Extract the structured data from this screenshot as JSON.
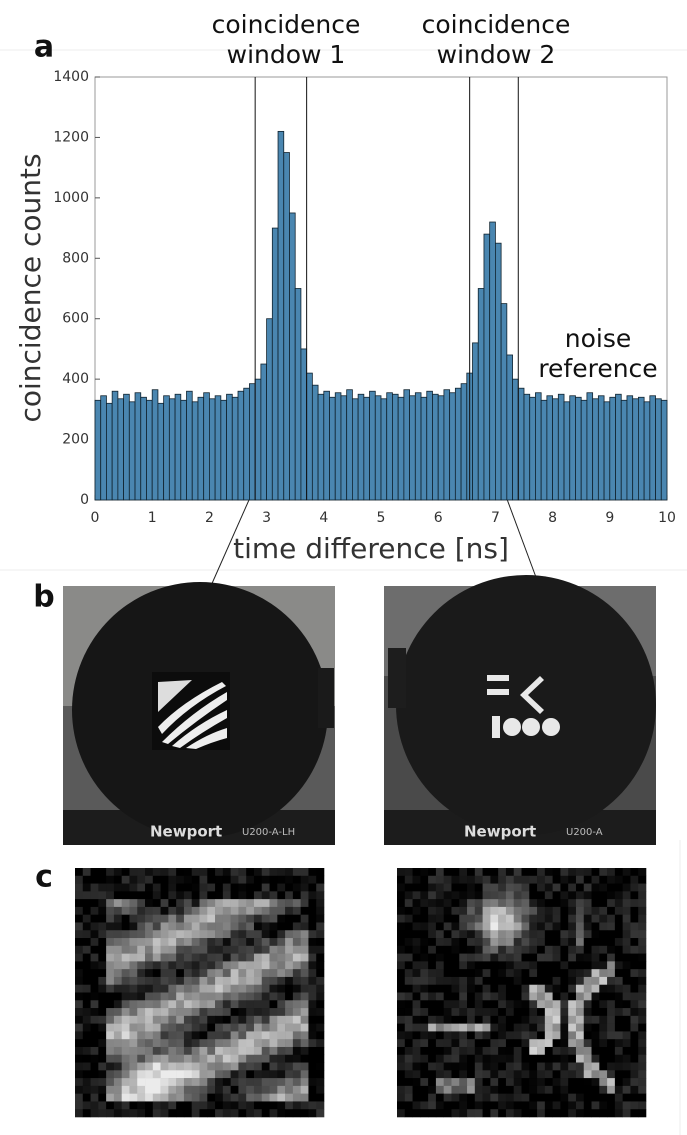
{
  "panel_labels": [
    "a",
    "b",
    "c"
  ],
  "photo_texts": [
    "Newport",
    "U200-A-LH",
    "Newport",
    "U200-A"
  ],
  "chart_data": {
    "type": "histogram",
    "xlabel": "time difference [ns]",
    "ylabel": "coincidence counts",
    "color": "#4a86b0",
    "edge_color": "#10222e",
    "bins": [
      0,
      0.1,
      0.2,
      0.3,
      0.4,
      0.5,
      0.6,
      0.7,
      0.8,
      0.9,
      1,
      1.1,
      1.2,
      1.3,
      1.4,
      1.5,
      1.6,
      1.7,
      1.8,
      1.9,
      2,
      2.1,
      2.2,
      2.3,
      2.4,
      2.5,
      2.6,
      2.7,
      2.8,
      2.9,
      3,
      3.1,
      3.2,
      3.3,
      3.4,
      3.5,
      3.6,
      3.7,
      3.8,
      3.9,
      4,
      4.1,
      4.2,
      4.3,
      4.4,
      4.5,
      4.6,
      4.7,
      4.8,
      4.9,
      5,
      5.1,
      5.2,
      5.3,
      5.4,
      5.5,
      5.6,
      5.7,
      5.8,
      5.9,
      6,
      6.1,
      6.2,
      6.3,
      6.4,
      6.5,
      6.6,
      6.7,
      6.8,
      6.9,
      7,
      7.1,
      7.2,
      7.3,
      7.4,
      7.5,
      7.6,
      7.7,
      7.8,
      7.9,
      8,
      8.1,
      8.2,
      8.3,
      8.4,
      8.5,
      8.6,
      8.7,
      8.8,
      8.9,
      9,
      9.1,
      9.2,
      9.3,
      9.4,
      9.5,
      9.6,
      9.7,
      9.8,
      9.9,
      10
    ],
    "values": [
      330,
      345,
      320,
      360,
      335,
      350,
      325,
      355,
      340,
      330,
      365,
      320,
      345,
      335,
      350,
      330,
      360,
      325,
      340,
      355,
      335,
      345,
      330,
      350,
      340,
      360,
      370,
      385,
      400,
      450,
      600,
      900,
      1220,
      1150,
      950,
      700,
      500,
      420,
      380,
      350,
      360,
      340,
      355,
      345,
      365,
      335,
      350,
      340,
      360,
      345,
      335,
      355,
      350,
      340,
      365,
      345,
      355,
      340,
      360,
      350,
      345,
      365,
      355,
      370,
      385,
      420,
      520,
      700,
      880,
      920,
      850,
      650,
      480,
      400,
      370,
      350,
      340,
      355,
      330,
      345,
      335,
      350,
      325,
      345,
      340,
      330,
      355,
      335,
      345,
      325,
      340,
      350,
      330,
      345,
      335,
      340,
      325,
      345,
      335,
      330
    ],
    "xlim": [
      0,
      10
    ],
    "xticks": [
      0,
      1,
      2,
      3,
      4,
      5,
      6,
      7,
      8,
      9,
      10
    ],
    "ylim": [
      0,
      1400
    ],
    "yticks": [
      0,
      200,
      400,
      600,
      800,
      1000,
      1200,
      1400
    ],
    "window_lines": [
      2.8,
      3.7,
      6.55,
      7.4
    ],
    "annotations": [
      {
        "lines": [
          "coincidence",
          "window 1"
        ]
      },
      {
        "lines": [
          "coincidence",
          "window 2"
        ]
      },
      {
        "lines": [
          "noise",
          "reference"
        ]
      }
    ]
  }
}
